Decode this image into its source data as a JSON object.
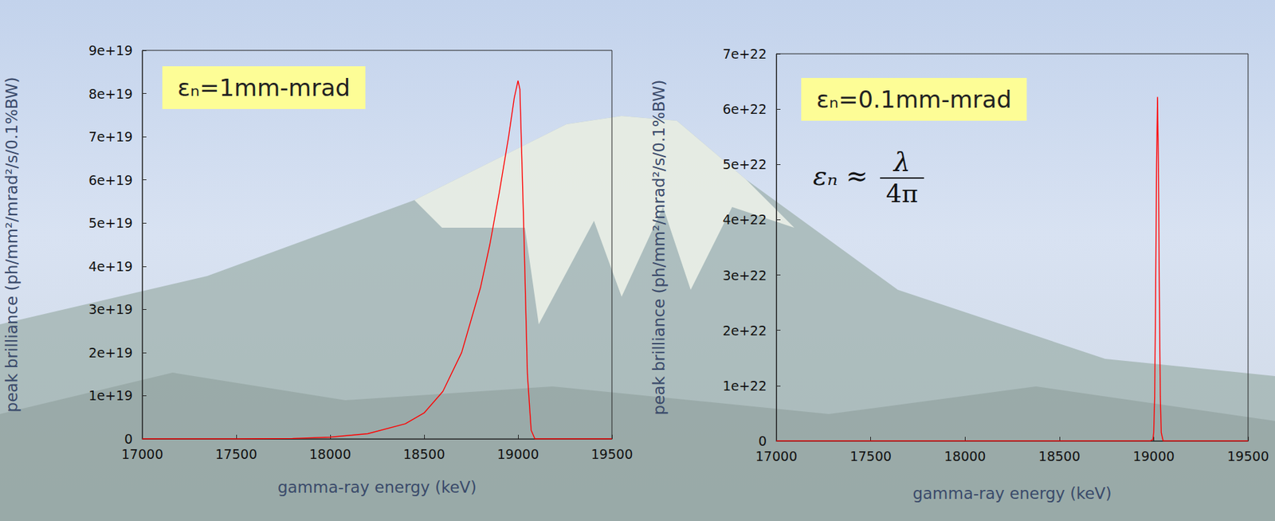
{
  "chart_data": [
    {
      "type": "line",
      "x_label": "gamma-ray energy (keV)",
      "y_label": "peak brilliance (ph/mm²/mrad²/s/0.1%BW)",
      "annotation": "εₙ=1mm-mrad",
      "x": [
        17000,
        17500,
        17800,
        18000,
        18200,
        18400,
        18500,
        18600,
        18700,
        18800,
        18850,
        18900,
        18950,
        18980,
        19000,
        19010,
        19030,
        19050,
        19070,
        19090,
        19500
      ],
      "series": [
        {
          "color": "#ff0000",
          "values": [
            0,
            0,
            1e+17,
            4e+17,
            1.2e+18,
            3.5e+18,
            6e+18,
            1.1e+19,
            2e+19,
            3.5e+19,
            4.5e+19,
            5.7e+19,
            7e+19,
            7.9e+19,
            8.3e+19,
            8.1e+19,
            5e+19,
            1.5e+19,
            2e+18,
            0,
            0
          ]
        }
      ],
      "xlim": [
        17000,
        19500
      ],
      "xticks": [
        17000,
        17500,
        18000,
        18500,
        19000,
        19500
      ],
      "ylim": [
        0,
        9e+19
      ],
      "yticks": [
        0,
        {
          "value": 1e+19,
          "label": "1e+19"
        },
        {
          "value": 2e+19,
          "label": "2e+19"
        },
        {
          "value": 3e+19,
          "label": "3e+19"
        },
        {
          "value": 4e+19,
          "label": "4e+19"
        },
        {
          "value": 5e+19,
          "label": "5e+19"
        },
        {
          "value": 6e+19,
          "label": "6e+19"
        },
        {
          "value": 7e+19,
          "label": "7e+19"
        },
        {
          "value": 8e+19,
          "label": "8e+19"
        },
        {
          "value": 9e+19,
          "label": "9e+19"
        }
      ],
      "grid": false
    },
    {
      "type": "line",
      "x_label": "gamma-ray energy (keV)",
      "y_label": "peak brilliance (ph/mm²/mrad²/s/0.1%BW)",
      "annotation": "εₙ=0.1mm-mrad",
      "formula": {
        "left": "εₙ ≈",
        "numerator": "λ",
        "denominator": "4π"
      },
      "x": [
        17000,
        18980,
        18995,
        19000,
        19005,
        19010,
        19015,
        19020,
        19025,
        19030,
        19035,
        19040,
        19050,
        19500
      ],
      "series": [
        {
          "color": "#ff0000",
          "values": [
            0,
            0,
            2e+20,
            1.5e+21,
            8e+21,
            2.6e+22,
            5e+22,
            6.22e+22,
            5e+22,
            2.6e+22,
            8e+21,
            1.5e+21,
            0,
            0
          ]
        }
      ],
      "xlim": [
        17000,
        19500
      ],
      "xticks": [
        17000,
        17500,
        18000,
        18500,
        19000,
        19500
      ],
      "ylim": [
        0,
        7e+22
      ],
      "yticks": [
        0,
        {
          "value": 1e+22,
          "label": "1e+22"
        },
        {
          "value": 2e+22,
          "label": "2e+22"
        },
        {
          "value": 3e+22,
          "label": "3e+22"
        },
        {
          "value": 4e+22,
          "label": "4e+22"
        },
        {
          "value": 5e+22,
          "label": "5e+22"
        },
        {
          "value": 6e+22,
          "label": "6e+22"
        },
        {
          "value": 7e+22,
          "label": "7e+22"
        }
      ],
      "grid": false
    }
  ]
}
